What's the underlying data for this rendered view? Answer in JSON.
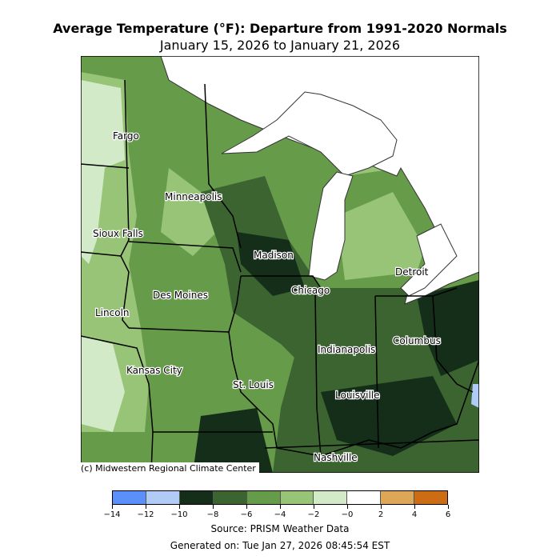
{
  "title": "Average Temperature (°F): Departure from 1991-2020 Normals",
  "subtitle": "January 15, 2026 to January 21, 2026",
  "credit": "(c) Midwestern Regional Climate Center",
  "source": "Source: PRISM Weather Data",
  "generated": "Generated on: Tue Jan 27, 2026 08:45:54 EST",
  "colorbar": {
    "bounds": [
      -14,
      -12,
      -10,
      -8,
      -6,
      -4,
      -2,
      0,
      2,
      4,
      6
    ],
    "tick_labels": [
      "−14",
      "−12",
      "−10",
      "−8",
      "−6",
      "−4",
      "−2",
      "−0",
      "2",
      "4",
      "6"
    ],
    "colors": [
      "#5b8ff9",
      "#b0cbf5",
      "#142e1a",
      "#3c6431",
      "#669b4a",
      "#98c477",
      "#d2eac8",
      "#ffffff",
      "#dda758",
      "#cc6c14"
    ]
  },
  "cities": [
    "Fargo",
    "Minneapolis",
    "Sioux Falls",
    "Madison",
    "Detroit",
    "Chicago",
    "Des Moines",
    "Lincoln",
    "Columbus",
    "Indianapolis",
    "Kansas City",
    "St. Louis",
    "Louisville",
    "Nashville"
  ]
}
